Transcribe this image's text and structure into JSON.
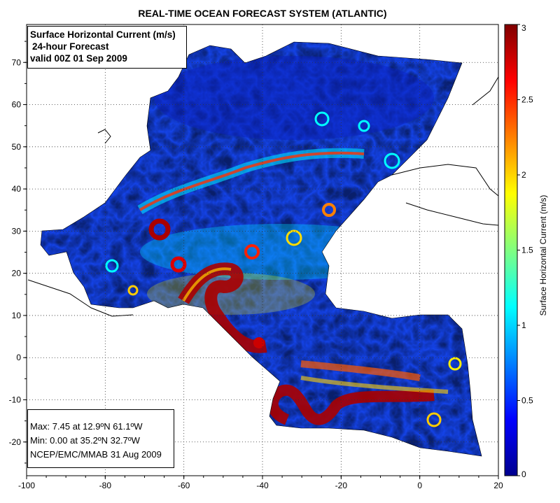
{
  "title": "REAL-TIME OCEAN FORECAST SYSTEM (ATLANTIC)",
  "info_box": {
    "line1": "Surface Horizontal Current (m/s)",
    "line2": "24-hour Forecast",
    "line3": "valid 00Z 01 Sep 2009"
  },
  "stats_box": {
    "max": "Max: 7.45 at 12.9ºN 61.1ºW",
    "min": "Min: 0.00 at 35.2ºN 32.7ºW",
    "source": "NCEP/EMC/MMAB 31 Aug 2009"
  },
  "colorbar": {
    "label": "Surface Horizontal Current (m/s)",
    "ticks": [
      "0",
      "0.5",
      "1",
      "1.5",
      "2",
      "2.5",
      "3"
    ],
    "min": 0,
    "max": 3,
    "colors": [
      "#00008f",
      "#0000ff",
      "#0080ff",
      "#00ffff",
      "#80ff80",
      "#ffff00",
      "#ff8000",
      "#ff0000",
      "#800000"
    ]
  },
  "axes": {
    "x_ticks": [
      "-100",
      "-80",
      "-60",
      "-40",
      "-20",
      "0",
      "20"
    ],
    "y_ticks": [
      "70",
      "60",
      "50",
      "40",
      "30",
      "20",
      "10",
      "0",
      "-10",
      "-20"
    ],
    "lon_range": [
      -100,
      20
    ],
    "lat_range": [
      -28,
      79
    ]
  }
}
